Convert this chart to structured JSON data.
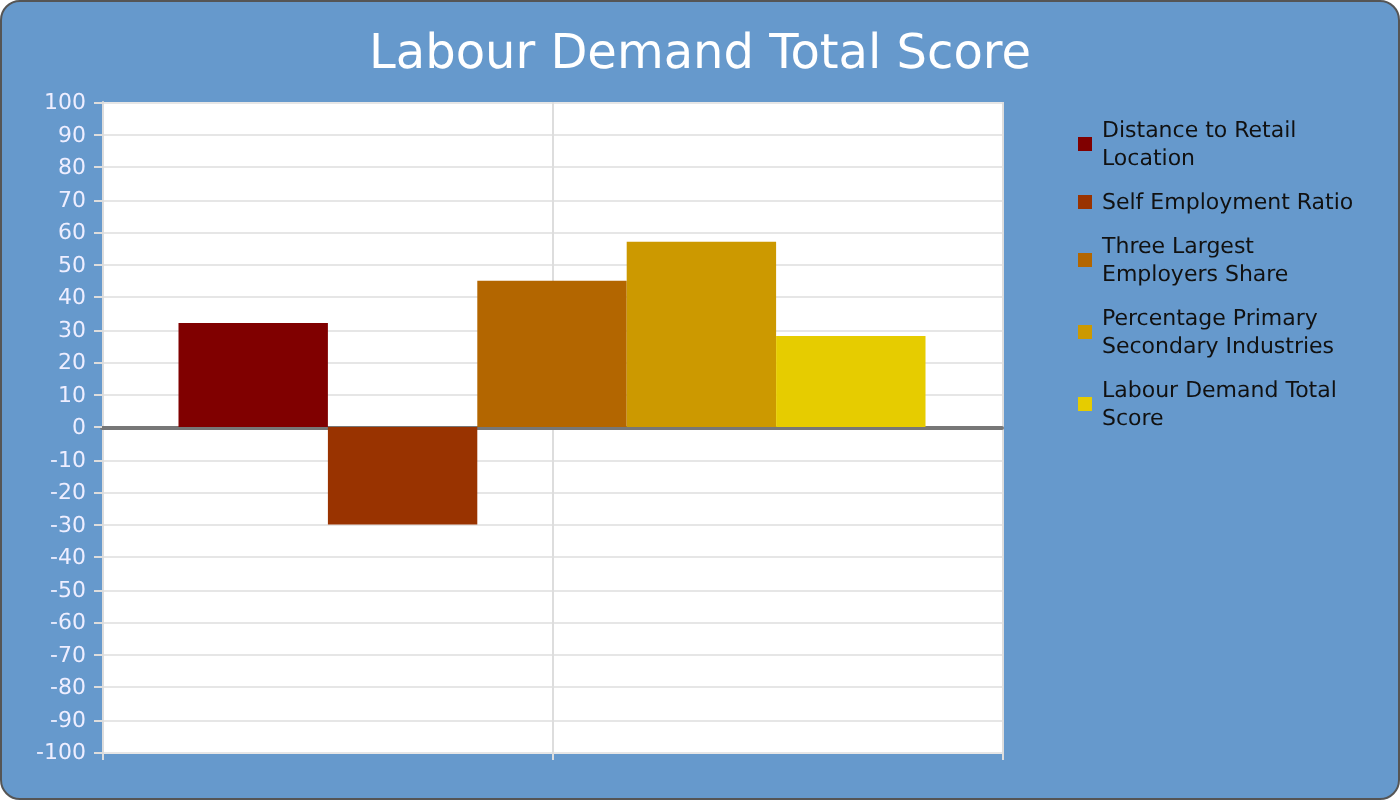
{
  "chart_data": {
    "type": "bar",
    "title": "Labour Demand Total Score",
    "categories": [
      null
    ],
    "series": [
      {
        "name": "Distance to Retail Location",
        "color": "#800000",
        "values": [
          32
        ]
      },
      {
        "name": "Self Employment Ratio",
        "color": "#993300",
        "values": [
          -30
        ]
      },
      {
        "name": "Three Largest Employers Share",
        "color": "#b36600",
        "values": [
          45
        ]
      },
      {
        "name": "Percentage Primary Secondary Industries",
        "color": "#cc9900",
        "values": [
          57
        ]
      },
      {
        "name": "Labour Demand Total Score",
        "color": "#e6cc00",
        "values": [
          28
        ]
      }
    ],
    "ylim": [
      -100,
      100
    ],
    "yticks": [
      -100,
      -90,
      -80,
      -70,
      -60,
      -50,
      -40,
      -30,
      -20,
      -10,
      0,
      10,
      20,
      30,
      40,
      50,
      60,
      70,
      80,
      90,
      100
    ],
    "grid": true,
    "legend": "right"
  }
}
